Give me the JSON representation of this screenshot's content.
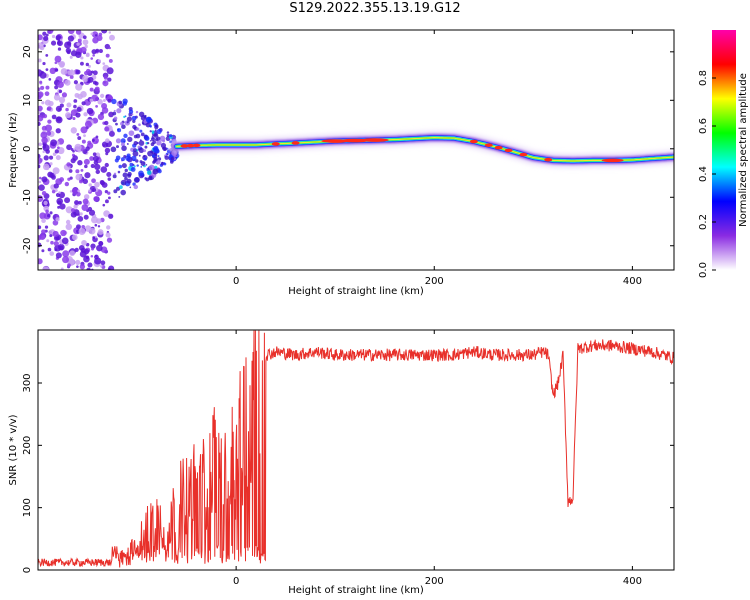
{
  "figure": {
    "title": "S129.2022.355.13.19.G12"
  },
  "chart_data": [
    {
      "type": "heatmap",
      "xlabel": "Height of straight line (km)",
      "ylabel": "Frequency (Hz)",
      "xlim": [
        -200,
        442
      ],
      "ylim": [
        -25,
        24.5
      ],
      "xticks": [
        0,
        200,
        400
      ],
      "yticks": [
        -20,
        -10,
        0,
        10,
        20
      ],
      "colorbar": {
        "label": "Normalized spectral amplitude",
        "range": [
          0,
          1
        ],
        "ticks": [
          "0.0",
          "0.2",
          "0.4",
          "0.6",
          "0.8"
        ],
        "colors": [
          "#ffffff",
          "#8a2be2",
          "#0000ff",
          "#00ffff",
          "#00ff00",
          "#ffff00",
          "#ff0000",
          "#ff00aa"
        ]
      },
      "ridge_frequency": {
        "x": [
          -60,
          -40,
          -20,
          0,
          20,
          40,
          60,
          80,
          100,
          120,
          140,
          160,
          180,
          200,
          220,
          240,
          260,
          280,
          300,
          320,
          340,
          360,
          380,
          400,
          420,
          442
        ],
        "y": [
          0.5,
          0.7,
          0.8,
          0.8,
          0.8,
          1.0,
          1.2,
          1.4,
          1.6,
          1.7,
          1.8,
          1.9,
          2.1,
          2.3,
          2.2,
          1.5,
          0.5,
          -0.6,
          -1.8,
          -2.4,
          -2.5,
          -2.4,
          -2.4,
          -2.3,
          -2.0,
          -1.7
        ]
      },
      "noise_region_km": [
        -200,
        -125
      ],
      "transition_region_km": [
        -125,
        -60
      ]
    },
    {
      "type": "line",
      "xlabel": "Height of straight line (km)",
      "ylabel": "SNR (10 * v/v)",
      "xlim": [
        -200,
        442
      ],
      "ylim": [
        0,
        385
      ],
      "xticks": [
        0,
        200,
        400
      ],
      "yticks": [
        0,
        100,
        200,
        300
      ],
      "color": "#e8302a",
      "x": [
        -200,
        -180,
        -160,
        -140,
        -125,
        -110,
        -100,
        -90,
        -80,
        -70,
        -60,
        -50,
        -40,
        -30,
        -20,
        -15,
        -10,
        -5,
        0,
        5,
        10,
        15,
        20,
        30,
        40,
        60,
        80,
        100,
        120,
        140,
        160,
        180,
        200,
        220,
        240,
        260,
        280,
        300,
        310,
        315,
        320,
        325,
        330,
        335,
        340,
        345,
        360,
        380,
        400,
        420,
        442
      ],
      "y": [
        12,
        12,
        12,
        12,
        12,
        20,
        40,
        70,
        90,
        60,
        110,
        120,
        140,
        140,
        200,
        210,
        130,
        200,
        150,
        220,
        240,
        280,
        330,
        345,
        350,
        345,
        350,
        345,
        345,
        345,
        345,
        345,
        345,
        345,
        350,
        345,
        345,
        345,
        350,
        345,
        280,
        300,
        345,
        110,
        115,
        355,
        360,
        360,
        355,
        350,
        340
      ]
    }
  ]
}
